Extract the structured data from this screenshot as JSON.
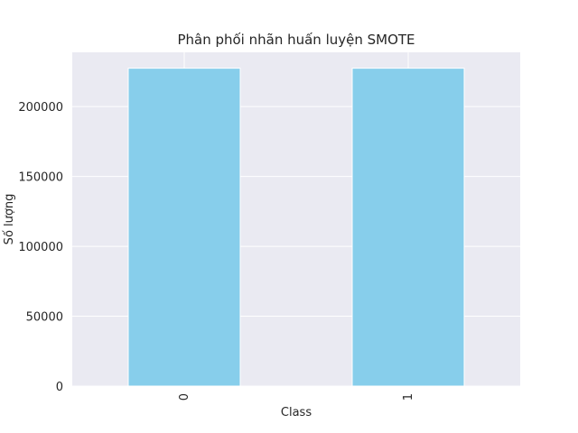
{
  "chart_data": {
    "type": "bar",
    "title": "Phân phối nhãn huấn luyện SMOTE",
    "xlabel": "Class",
    "ylabel": "Số lượng",
    "categories": [
      "0",
      "1"
    ],
    "values": [
      227451,
      227451
    ],
    "ylim": [
      0,
      238823
    ],
    "yticks": [
      0,
      50000,
      100000,
      150000,
      200000
    ],
    "ytick_labels": [
      "0",
      "50000",
      "100000",
      "150000",
      "200000"
    ],
    "bar_color": "#87ceeb",
    "background_color": "#eaeaf2",
    "grid": true,
    "xtick_rotation": "vertical"
  }
}
